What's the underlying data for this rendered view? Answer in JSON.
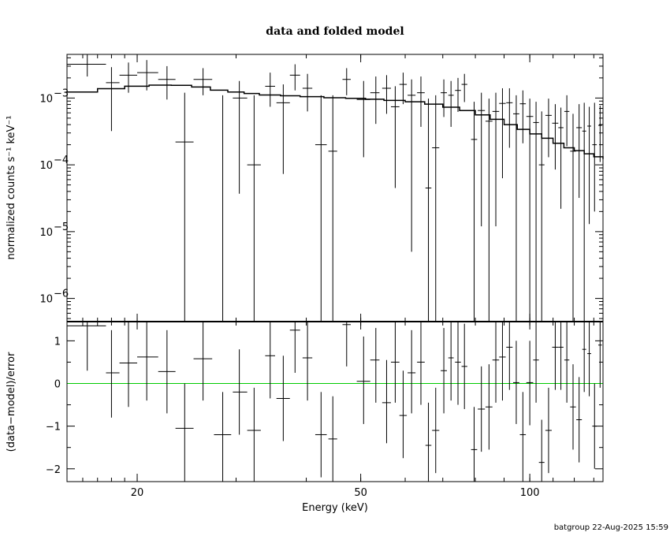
{
  "chart_data": [
    {
      "type": "scatter",
      "panel": "top",
      "title": "data and folded model",
      "ylabel": "normalized counts s⁻¹ keV⁻¹",
      "xscale": "log",
      "yscale": "log",
      "xlim": [
        15,
        135
      ],
      "ylim": [
        4.5e-07,
        0.0045
      ],
      "yticks": [
        {
          "value": 0.001,
          "base": "10",
          "exp": "−3"
        },
        {
          "value": 0.0001,
          "base": "10",
          "exp": "−4"
        },
        {
          "value": 1e-05,
          "base": "10",
          "exp": "−5"
        },
        {
          "value": 1e-06,
          "base": "10",
          "exp": "−6"
        }
      ],
      "data": [
        {
          "x": 16.3,
          "xlo": 15.0,
          "xhi": 17.6,
          "y": 0.0032,
          "ylo": 0.0021,
          "yhi": 0.0045
        },
        {
          "x": 18.0,
          "xlo": 17.6,
          "xhi": 18.6,
          "y": 0.0017,
          "ylo": 0.00032,
          "yhi": 0.0029
        },
        {
          "x": 19.3,
          "xlo": 18.6,
          "xhi": 20.0,
          "y": 0.0022,
          "ylo": 0.0012,
          "yhi": 0.0034
        },
        {
          "x": 20.8,
          "xlo": 20.0,
          "xhi": 21.8,
          "y": 0.0024,
          "ylo": 0.0013,
          "yhi": 0.0037
        },
        {
          "x": 22.6,
          "xlo": 21.8,
          "xhi": 23.4,
          "y": 0.0019,
          "ylo": 0.00095,
          "yhi": 0.003
        },
        {
          "x": 24.3,
          "xlo": 23.4,
          "xhi": 25.2,
          "y": 0.00022,
          "ylo": 4.5e-07,
          "yhi": 0.0012
        },
        {
          "x": 26.2,
          "xlo": 25.2,
          "xhi": 27.2,
          "y": 0.0019,
          "ylo": 0.0011,
          "yhi": 0.0028
        },
        {
          "x": 28.4,
          "xlo": 27.4,
          "xhi": 29.4,
          "y": 4.5e-07,
          "ylo": 4.5e-07,
          "yhi": 0.0011
        },
        {
          "x": 30.4,
          "xlo": 29.6,
          "xhi": 31.4,
          "y": 0.001,
          "ylo": 3.7e-05,
          "yhi": 0.0018
        },
        {
          "x": 32.3,
          "xlo": 31.4,
          "xhi": 33.2,
          "y": 0.0001,
          "ylo": 4.5e-07,
          "yhi": 0.0011
        },
        {
          "x": 34.5,
          "xlo": 33.8,
          "xhi": 35.2,
          "y": 0.0015,
          "ylo": 0.00074,
          "yhi": 0.0024
        },
        {
          "x": 36.4,
          "xlo": 35.4,
          "xhi": 37.4,
          "y": 0.00085,
          "ylo": 7.3e-05,
          "yhi": 0.0016
        },
        {
          "x": 38.2,
          "xlo": 37.4,
          "xhi": 39.0,
          "y": 0.0022,
          "ylo": 0.0013,
          "yhi": 0.0032
        },
        {
          "x": 40.2,
          "xlo": 39.4,
          "xhi": 41.0,
          "y": 0.0014,
          "ylo": 0.00063,
          "yhi": 0.0023
        },
        {
          "x": 42.5,
          "xlo": 41.5,
          "xhi": 43.5,
          "y": 0.0002,
          "ylo": 4.5e-07,
          "yhi": 0.0011
        },
        {
          "x": 44.6,
          "xlo": 43.8,
          "xhi": 45.4,
          "y": 0.00016,
          "ylo": 4.5e-07,
          "yhi": 0.0011
        },
        {
          "x": 47.2,
          "xlo": 46.4,
          "xhi": 48.0,
          "y": 0.0019,
          "ylo": 0.0011,
          "yhi": 0.0028
        },
        {
          "x": 50.6,
          "xlo": 49.2,
          "xhi": 52.0,
          "y": 0.00095,
          "ylo": 0.00013,
          "yhi": 0.0018
        },
        {
          "x": 53.2,
          "xlo": 52.0,
          "xhi": 54.0,
          "y": 0.0012,
          "ylo": 0.00041,
          "yhi": 0.0021
        },
        {
          "x": 55.6,
          "xlo": 54.6,
          "xhi": 56.6,
          "y": 0.0014,
          "ylo": 0.00058,
          "yhi": 0.0022
        },
        {
          "x": 57.6,
          "xlo": 56.6,
          "xhi": 58.6,
          "y": 0.00074,
          "ylo": 4.5e-05,
          "yhi": 0.0015
        },
        {
          "x": 59.5,
          "xlo": 58.6,
          "xhi": 60.4,
          "y": 0.0016,
          "ylo": 0.00081,
          "yhi": 0.0024
        },
        {
          "x": 61.6,
          "xlo": 60.6,
          "xhi": 62.6,
          "y": 0.0011,
          "ylo": 5e-06,
          "yhi": 0.0019
        },
        {
          "x": 64.0,
          "xlo": 63.0,
          "xhi": 65.0,
          "y": 0.0012,
          "ylo": 0.00037,
          "yhi": 0.0021
        },
        {
          "x": 66.0,
          "xlo": 65.2,
          "xhi": 66.8,
          "y": 4.5e-05,
          "ylo": 4.5e-07,
          "yhi": 0.00098
        },
        {
          "x": 68.0,
          "xlo": 67.0,
          "xhi": 69.0,
          "y": 0.00018,
          "ylo": 4.5e-07,
          "yhi": 0.0011
        },
        {
          "x": 70.3,
          "xlo": 69.4,
          "xhi": 71.2,
          "y": 0.0012,
          "ylo": 0.00052,
          "yhi": 0.0019
        },
        {
          "x": 72.4,
          "xlo": 71.6,
          "xhi": 73.2,
          "y": 0.0011,
          "ylo": 0.00037,
          "yhi": 0.0018
        },
        {
          "x": 74.5,
          "xlo": 73.6,
          "xhi": 75.4,
          "y": 0.0013,
          "ylo": 0.00062,
          "yhi": 0.002
        },
        {
          "x": 76.5,
          "xlo": 75.6,
          "xhi": 77.4,
          "y": 0.0016,
          "ylo": 0.00087,
          "yhi": 0.0023
        },
        {
          "x": 79.6,
          "xlo": 78.6,
          "xhi": 80.6,
          "y": 0.00024,
          "ylo": 4.5e-07,
          "yhi": 0.00088
        },
        {
          "x": 82.0,
          "xlo": 80.8,
          "xhi": 83.2,
          "y": 0.00065,
          "ylo": 1.2e-05,
          "yhi": 0.0012
        },
        {
          "x": 84.6,
          "xlo": 83.4,
          "xhi": 85.8,
          "y": 0.00045,
          "ylo": 4.5e-07,
          "yhi": 0.00098
        },
        {
          "x": 87.0,
          "xlo": 85.8,
          "xhi": 88.2,
          "y": 0.00063,
          "ylo": 1.2e-05,
          "yhi": 0.0012
        },
        {
          "x": 89.4,
          "xlo": 88.2,
          "xhi": 90.6,
          "y": 0.00083,
          "ylo": 6.3e-05,
          "yhi": 0.0014
        },
        {
          "x": 92.0,
          "xlo": 90.8,
          "xhi": 93.2,
          "y": 0.00085,
          "ylo": 0.00018,
          "yhi": 0.0014
        },
        {
          "x": 94.6,
          "xlo": 93.4,
          "xhi": 95.8,
          "y": 0.00058,
          "ylo": 4.5e-07,
          "yhi": 0.0011
        },
        {
          "x": 97.2,
          "xlo": 96.0,
          "xhi": 98.4,
          "y": 0.00082,
          "ylo": 0.00021,
          "yhi": 0.0013
        },
        {
          "x": 100.0,
          "xlo": 98.6,
          "xhi": 101.4,
          "y": 0.00053,
          "ylo": 4.5e-07,
          "yhi": 0.00098
        },
        {
          "x": 102.6,
          "xlo": 101.4,
          "xhi": 103.8,
          "y": 0.00043,
          "ylo": 4.5e-07,
          "yhi": 0.00088
        },
        {
          "x": 105.0,
          "xlo": 103.8,
          "xhi": 106.2,
          "y": 0.0001,
          "ylo": 4.5e-07,
          "yhi": 0.00063
        },
        {
          "x": 108.0,
          "xlo": 106.6,
          "xhi": 109.4,
          "y": 0.00055,
          "ylo": 0.00013,
          "yhi": 0.00098
        },
        {
          "x": 111.0,
          "xlo": 109.6,
          "xhi": 112.4,
          "y": 0.00042,
          "ylo": 8.5e-05,
          "yhi": 0.00081
        },
        {
          "x": 113.6,
          "xlo": 112.4,
          "xhi": 114.8,
          "y": 0.00036,
          "ylo": 2.2e-05,
          "yhi": 0.00072
        },
        {
          "x": 116.4,
          "xlo": 115.2,
          "xhi": 117.6,
          "y": 0.00063,
          "ylo": 0.00019,
          "yhi": 0.0011
        },
        {
          "x": 119.4,
          "xlo": 118.0,
          "xhi": 120.8,
          "y": 0.00016,
          "ylo": 4.5e-07,
          "yhi": 0.00058
        },
        {
          "x": 122.4,
          "xlo": 121.0,
          "xhi": 123.8,
          "y": 0.00036,
          "ylo": 3.2e-05,
          "yhi": 0.00081
        },
        {
          "x": 125.0,
          "xlo": 124.0,
          "xhi": 126.0,
          "y": 0.00032,
          "ylo": 4.5e-07,
          "yhi": 0.00085
        },
        {
          "x": 127.6,
          "xlo": 126.6,
          "xhi": 128.6,
          "y": 0.00038,
          "ylo": 1.3e-05,
          "yhi": 0.00074
        },
        {
          "x": 130.4,
          "xlo": 129.2,
          "xhi": 131.6,
          "y": 0.0002,
          "ylo": 2e-05,
          "yhi": 0.00085
        },
        {
          "x": 133.4,
          "xlo": 132.4,
          "xhi": 134.4,
          "y": 0.00039,
          "ylo": 0.00011,
          "yhi": 0.00077
        }
      ],
      "model": [
        [
          15.0,
          0.00123
        ],
        [
          17.0,
          0.00138
        ],
        [
          19.0,
          0.0015
        ],
        [
          21.0,
          0.00156
        ],
        [
          23.0,
          0.00155
        ],
        [
          25.0,
          0.00146
        ],
        [
          27.0,
          0.00131
        ],
        [
          29.0,
          0.00123
        ],
        [
          31.0,
          0.00117
        ],
        [
          33.0,
          0.00111
        ],
        [
          36.0,
          0.00108
        ],
        [
          39.0,
          0.00105
        ],
        [
          43.0,
          0.00101
        ],
        [
          47.0,
          0.00099
        ],
        [
          51.0,
          0.00096
        ],
        [
          55.0,
          0.00092
        ],
        [
          60.0,
          0.00088
        ],
        [
          65.0,
          0.00081
        ],
        [
          70.0,
          0.00073
        ],
        [
          75.0,
          0.00065
        ],
        [
          80.0,
          0.00056
        ],
        [
          85.0,
          0.00048
        ],
        [
          90.0,
          0.0004
        ],
        [
          95.0,
          0.00034
        ],
        [
          100.0,
          0.00029
        ],
        [
          105.0,
          0.00025
        ],
        [
          110.0,
          0.00021
        ],
        [
          115.0,
          0.00018
        ],
        [
          120.0,
          0.000163
        ],
        [
          125.0,
          0.000146
        ],
        [
          130.0,
          0.000132
        ],
        [
          135.0,
          0.000122
        ]
      ]
    },
    {
      "type": "scatter",
      "panel": "bottom",
      "xlabel": "Energy (keV)",
      "ylabel": "(data−model)/error",
      "xscale": "log",
      "xlim": [
        15,
        135
      ],
      "ylim": [
        -2.3,
        1.45
      ],
      "xticks": [
        {
          "value": 20,
          "label": "20"
        },
        {
          "value": 50,
          "label": "50"
        },
        {
          "value": 100,
          "label": "100"
        }
      ],
      "yticks": [
        {
          "value": 1,
          "label": "1"
        },
        {
          "value": 0,
          "label": "0"
        },
        {
          "value": -1,
          "label": "−1"
        },
        {
          "value": -2,
          "label": "−2"
        }
      ],
      "zero_line_color": "#00cc00",
      "data": [
        {
          "x": 16.3,
          "xlo": 15.0,
          "xhi": 17.6,
          "y": 1.35,
          "ylo": 0.3,
          "yhi": 1.45
        },
        {
          "x": 18.0,
          "xlo": 17.6,
          "xhi": 18.6,
          "y": 0.25,
          "ylo": -0.8,
          "yhi": 1.25
        },
        {
          "x": 19.3,
          "xlo": 18.6,
          "xhi": 20.0,
          "y": 0.48,
          "ylo": -0.55,
          "yhi": 1.45
        },
        {
          "x": 20.8,
          "xlo": 20.0,
          "xhi": 21.8,
          "y": 0.62,
          "ylo": -0.4,
          "yhi": 1.45
        },
        {
          "x": 22.6,
          "xlo": 21.8,
          "xhi": 23.4,
          "y": 0.28,
          "ylo": -0.7,
          "yhi": 1.25
        },
        {
          "x": 24.3,
          "xlo": 23.4,
          "xhi": 25.2,
          "y": -1.05,
          "ylo": -2.3,
          "yhi": 0.0
        },
        {
          "x": 26.2,
          "xlo": 25.2,
          "xhi": 27.2,
          "y": 0.58,
          "ylo": -0.4,
          "yhi": 1.45
        },
        {
          "x": 28.4,
          "xlo": 27.4,
          "xhi": 29.4,
          "y": -1.2,
          "ylo": -2.3,
          "yhi": -0.2
        },
        {
          "x": 30.4,
          "xlo": 29.6,
          "xhi": 31.4,
          "y": -0.2,
          "ylo": -1.2,
          "yhi": 0.8
        },
        {
          "x": 32.3,
          "xlo": 31.4,
          "xhi": 33.2,
          "y": -1.1,
          "ylo": -2.3,
          "yhi": -0.1
        },
        {
          "x": 34.5,
          "xlo": 33.8,
          "xhi": 35.2,
          "y": 0.65,
          "ylo": -0.35,
          "yhi": 1.45
        },
        {
          "x": 36.4,
          "xlo": 35.4,
          "xhi": 37.4,
          "y": -0.35,
          "ylo": -1.35,
          "yhi": 0.65
        },
        {
          "x": 38.2,
          "xlo": 37.4,
          "xhi": 39.0,
          "y": 1.25,
          "ylo": 0.25,
          "yhi": 1.45
        },
        {
          "x": 40.2,
          "xlo": 39.4,
          "xhi": 41.0,
          "y": 0.6,
          "ylo": -0.4,
          "yhi": 1.45
        },
        {
          "x": 42.5,
          "xlo": 41.5,
          "xhi": 43.5,
          "y": -1.2,
          "ylo": -2.2,
          "yhi": -0.2
        },
        {
          "x": 44.6,
          "xlo": 43.8,
          "xhi": 45.4,
          "y": -1.3,
          "ylo": -2.3,
          "yhi": -0.3
        },
        {
          "x": 47.2,
          "xlo": 46.4,
          "xhi": 48.0,
          "y": 1.38,
          "ylo": 0.4,
          "yhi": 1.45
        },
        {
          "x": 50.6,
          "xlo": 49.2,
          "xhi": 52.0,
          "y": 0.05,
          "ylo": -0.95,
          "yhi": 1.1
        },
        {
          "x": 53.2,
          "xlo": 52.0,
          "xhi": 54.0,
          "y": 0.55,
          "ylo": -0.45,
          "yhi": 1.3
        },
        {
          "x": 55.6,
          "xlo": 54.6,
          "xhi": 56.6,
          "y": -0.45,
          "ylo": -1.4,
          "yhi": 0.55
        },
        {
          "x": 57.6,
          "xlo": 56.6,
          "xhi": 58.6,
          "y": 0.5,
          "ylo": -0.45,
          "yhi": 1.45
        },
        {
          "x": 59.5,
          "xlo": 58.6,
          "xhi": 60.4,
          "y": -0.75,
          "ylo": -1.75,
          "yhi": 0.3
        },
        {
          "x": 61.6,
          "xlo": 60.6,
          "xhi": 62.6,
          "y": 0.25,
          "ylo": -0.7,
          "yhi": 1.25
        },
        {
          "x": 64.0,
          "xlo": 63.0,
          "xhi": 65.0,
          "y": 0.5,
          "ylo": -0.5,
          "yhi": 1.45
        },
        {
          "x": 66.0,
          "xlo": 65.2,
          "xhi": 66.8,
          "y": -1.45,
          "ylo": -2.3,
          "yhi": -0.45
        },
        {
          "x": 68.0,
          "xlo": 67.0,
          "xhi": 69.0,
          "y": -1.1,
          "ylo": -2.1,
          "yhi": -0.1
        },
        {
          "x": 70.3,
          "xlo": 69.4,
          "xhi": 71.2,
          "y": 0.3,
          "ylo": -0.7,
          "yhi": 1.3
        },
        {
          "x": 72.4,
          "xlo": 71.6,
          "xhi": 73.2,
          "y": 0.6,
          "ylo": -0.4,
          "yhi": 1.45
        },
        {
          "x": 74.5,
          "xlo": 73.6,
          "xhi": 75.4,
          "y": 0.5,
          "ylo": -0.5,
          "yhi": 1.45
        },
        {
          "x": 76.5,
          "xlo": 75.6,
          "xhi": 77.4,
          "y": 0.4,
          "ylo": -0.6,
          "yhi": 1.4
        },
        {
          "x": 79.6,
          "xlo": 78.6,
          "xhi": 80.6,
          "y": -1.55,
          "ylo": -2.3,
          "yhi": -0.55
        },
        {
          "x": 82.0,
          "xlo": 80.8,
          "xhi": 83.2,
          "y": -0.6,
          "ylo": -1.6,
          "yhi": 0.4
        },
        {
          "x": 84.6,
          "xlo": 83.4,
          "xhi": 85.8,
          "y": -0.55,
          "ylo": -1.55,
          "yhi": 0.45
        },
        {
          "x": 87.0,
          "xlo": 85.8,
          "xhi": 88.2,
          "y": 0.55,
          "ylo": -0.45,
          "yhi": 1.45
        },
        {
          "x": 89.4,
          "xlo": 88.2,
          "xhi": 90.6,
          "y": 0.62,
          "ylo": -0.4,
          "yhi": 1.45
        },
        {
          "x": 92.0,
          "xlo": 90.8,
          "xhi": 93.2,
          "y": 0.85,
          "ylo": -0.15,
          "yhi": 1.45
        },
        {
          "x": 94.6,
          "xlo": 93.4,
          "xhi": 95.8,
          "y": 0.02,
          "ylo": -0.95,
          "yhi": 1.0
        },
        {
          "x": 97.2,
          "xlo": 96.0,
          "xhi": 98.4,
          "y": -1.2,
          "ylo": -2.3,
          "yhi": -0.2
        },
        {
          "x": 100.0,
          "xlo": 98.6,
          "xhi": 101.4,
          "y": 0.02,
          "ylo": -0.98,
          "yhi": 1.0
        },
        {
          "x": 102.6,
          "xlo": 101.4,
          "xhi": 103.8,
          "y": 0.55,
          "ylo": -0.45,
          "yhi": 1.45
        },
        {
          "x": 105.0,
          "xlo": 103.8,
          "xhi": 106.2,
          "y": -1.85,
          "ylo": -2.3,
          "yhi": -0.85
        },
        {
          "x": 108.0,
          "xlo": 106.6,
          "xhi": 109.4,
          "y": -1.1,
          "ylo": -2.1,
          "yhi": -0.1
        },
        {
          "x": 111.0,
          "xlo": 109.6,
          "xhi": 112.4,
          "y": 0.85,
          "ylo": -0.15,
          "yhi": 1.45
        },
        {
          "x": 113.6,
          "xlo": 112.4,
          "xhi": 114.8,
          "y": 0.85,
          "ylo": -0.15,
          "yhi": 1.45
        },
        {
          "x": 116.4,
          "xlo": 115.2,
          "xhi": 117.6,
          "y": 0.55,
          "ylo": -0.45,
          "yhi": 1.45
        },
        {
          "x": 119.4,
          "xlo": 118.0,
          "xhi": 120.8,
          "y": -0.55,
          "ylo": -1.55,
          "yhi": 0.45
        },
        {
          "x": 122.4,
          "xlo": 121.0,
          "xhi": 123.8,
          "y": -0.85,
          "ylo": -1.85,
          "yhi": 0.15
        },
        {
          "x": 125.0,
          "xlo": 124.0,
          "xhi": 126.0,
          "y": 0.8,
          "ylo": -0.2,
          "yhi": 1.45
        },
        {
          "x": 127.6,
          "xlo": 126.6,
          "xhi": 128.6,
          "y": 0.7,
          "ylo": -0.3,
          "yhi": 1.45
        },
        {
          "x": 130.4,
          "xlo": 129.2,
          "xhi": 131.6,
          "y": -1.0,
          "ylo": -2.0,
          "yhi": 0.0
        },
        {
          "x": 133.4,
          "xlo": 132.4,
          "xhi": 134.4,
          "y": 0.9,
          "ylo": -0.1,
          "yhi": 1.45
        }
      ]
    }
  ],
  "footer": {
    "stamp": "batgroup 22-Aug-2025 15:59"
  }
}
